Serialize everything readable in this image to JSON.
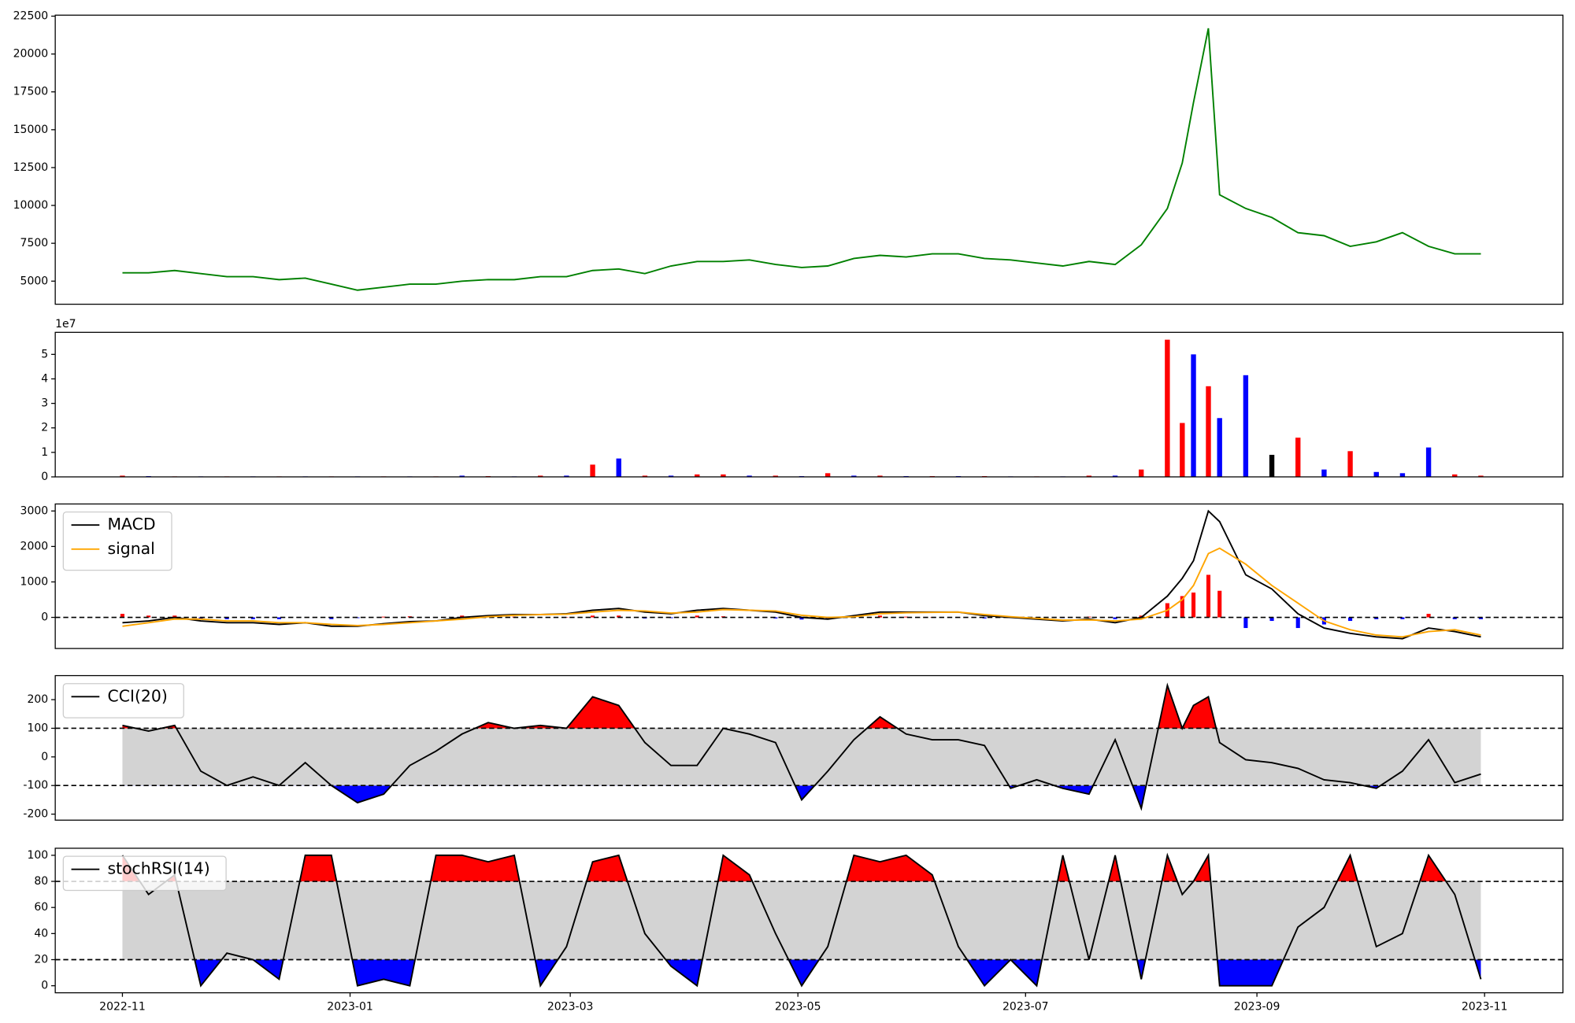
{
  "chart_data": [
    {
      "type": "line",
      "x": [
        0,
        7,
        14,
        21,
        28,
        35,
        42,
        49,
        56,
        63,
        70,
        77,
        84,
        91,
        98,
        105,
        112,
        119,
        126,
        133,
        140,
        147,
        154,
        161,
        168,
        175,
        182,
        189,
        196,
        203,
        210,
        217,
        224,
        231,
        238,
        245,
        252,
        259,
        266,
        273,
        280,
        284,
        287,
        291,
        294,
        301,
        308,
        315,
        322,
        329,
        336,
        343,
        350,
        357,
        364
      ],
      "xlim": [
        -18,
        386
      ],
      "ylim": [
        3475,
        22566
      ],
      "yticks": [
        5000,
        7500,
        10000,
        12500,
        15000,
        17500,
        20000,
        22500
      ],
      "series": [
        {
          "color": "green",
          "values": [
            5550,
            5550,
            5700,
            5500,
            5300,
            5300,
            5100,
            5200,
            4800,
            4400,
            4600,
            4800,
            4800,
            5000,
            5100,
            5100,
            5300,
            5300,
            5700,
            5800,
            5500,
            6000,
            6300,
            6300,
            6400,
            6100,
            5900,
            6000,
            6500,
            6700,
            6600,
            6800,
            6800,
            6500,
            6400,
            6200,
            6000,
            6300,
            6100,
            7400,
            9800,
            12800,
            16800,
            21700,
            10700,
            9800,
            9200,
            8200,
            8000,
            7300,
            7600,
            8200,
            7300,
            6800,
            6800
          ]
        }
      ]
    },
    {
      "type": "bar",
      "x": [
        0,
        7,
        14,
        21,
        28,
        35,
        42,
        49,
        56,
        63,
        70,
        77,
        84,
        91,
        98,
        105,
        112,
        119,
        126,
        133,
        140,
        147,
        154,
        161,
        168,
        175,
        182,
        189,
        196,
        203,
        210,
        217,
        224,
        231,
        238,
        245,
        252,
        259,
        266,
        273,
        280,
        284,
        287,
        291,
        294,
        301,
        308,
        315,
        322,
        329,
        336,
        343,
        350,
        357,
        364
      ],
      "xlim": [
        -18,
        386
      ],
      "ylim": [
        0,
        5.9
      ],
      "yticks": [
        0,
        1,
        2,
        3,
        4,
        5
      ],
      "y_offset_label": "1e7",
      "values": [
        0.05,
        0.03,
        0.02,
        0.02,
        0.02,
        0.02,
        0.02,
        0.02,
        0.02,
        0.02,
        0.02,
        0.02,
        0.02,
        0.05,
        0.03,
        0.02,
        0.05,
        0.05,
        0.5,
        0.75,
        0.05,
        0.05,
        0.1,
        0.1,
        0.05,
        0.05,
        0.03,
        0.15,
        0.05,
        0.05,
        0.03,
        0.03,
        0.03,
        0.03,
        0.02,
        0.02,
        0.02,
        0.05,
        0.05,
        0.3,
        5.6,
        2.2,
        5.0,
        3.7,
        2.4,
        4.15,
        0.9,
        1.6,
        0.3,
        1.05,
        0.2,
        0.15,
        1.2,
        0.1,
        0.05
      ],
      "colors": [
        "red",
        "blue",
        "red",
        "blue",
        "red",
        "blue",
        "red",
        "blue",
        "red",
        "blue",
        "red",
        "blue",
        "red",
        "blue",
        "red",
        "blue",
        "red",
        "blue",
        "red",
        "blue",
        "red",
        "blue",
        "red",
        "red",
        "blue",
        "red",
        "blue",
        "red",
        "blue",
        "red",
        "blue",
        "red",
        "blue",
        "red",
        "blue",
        "red",
        "blue",
        "red",
        "blue",
        "red",
        "red",
        "red",
        "blue",
        "red",
        "blue",
        "blue",
        "black",
        "red",
        "blue",
        "red",
        "blue",
        "blue",
        "blue",
        "red",
        "red"
      ]
    },
    {
      "type": "line",
      "x": [
        0,
        7,
        14,
        21,
        28,
        35,
        42,
        49,
        56,
        63,
        70,
        77,
        84,
        91,
        98,
        105,
        112,
        119,
        126,
        133,
        140,
        147,
        154,
        161,
        168,
        175,
        182,
        189,
        196,
        203,
        210,
        217,
        224,
        231,
        238,
        245,
        252,
        259,
        266,
        273,
        280,
        284,
        287,
        291,
        294,
        301,
        308,
        315,
        322,
        329,
        336,
        343,
        350,
        357,
        364
      ],
      "xlim": [
        -18,
        386
      ],
      "ylim": [
        -878,
        3198
      ],
      "yticks": [
        0,
        1000,
        2000,
        3000
      ],
      "hlines": [
        0
      ],
      "legend": "upper left",
      "series": [
        {
          "name": "MACD",
          "color": "black",
          "values": [
            -150,
            -100,
            0,
            -100,
            -150,
            -150,
            -200,
            -150,
            -250,
            -250,
            -180,
            -120,
            -100,
            0,
            50,
            80,
            80,
            100,
            200,
            250,
            150,
            100,
            200,
            250,
            200,
            150,
            0,
            -50,
            50,
            150,
            150,
            150,
            150,
            50,
            0,
            -50,
            -100,
            -50,
            -150,
            0,
            600,
            1100,
            1600,
            3000,
            2700,
            1200,
            800,
            100,
            -300,
            -450,
            -550,
            -600,
            -300,
            -400,
            -550
          ]
        },
        {
          "name": "signal",
          "color": "orange",
          "values": [
            -250,
            -150,
            -50,
            -50,
            -100,
            -100,
            -150,
            -150,
            -200,
            -230,
            -200,
            -150,
            -100,
            -50,
            20,
            60,
            80,
            90,
            150,
            200,
            180,
            120,
            150,
            220,
            200,
            180,
            60,
            0,
            20,
            100,
            130,
            140,
            150,
            80,
            20,
            -30,
            -80,
            -70,
            -100,
            -50,
            200,
            500,
            900,
            1800,
            1950,
            1500,
            900,
            400,
            -100,
            -350,
            -500,
            -550,
            -400,
            -350,
            -500
          ]
        }
      ],
      "histogram": [
        100,
        50,
        50,
        -50,
        -50,
        -50,
        -50,
        0,
        -50,
        -20,
        20,
        30,
        0,
        50,
        30,
        20,
        0,
        10,
        50,
        50,
        -30,
        -20,
        50,
        30,
        0,
        -30,
        -60,
        -50,
        30,
        50,
        20,
        10,
        0,
        -30,
        -20,
        -20,
        -20,
        20,
        -50,
        50,
        400,
        600,
        700,
        1200,
        750,
        -300,
        -100,
        -300,
        -200,
        -100,
        -50,
        -50,
        100,
        -50,
        -50
      ],
      "histogram_colors": {
        "positive": "red",
        "negative": "blue"
      }
    },
    {
      "type": "oscillator",
      "x": [
        0,
        7,
        14,
        21,
        28,
        35,
        42,
        49,
        56,
        63,
        70,
        77,
        84,
        91,
        98,
        105,
        112,
        119,
        126,
        133,
        140,
        147,
        154,
        161,
        168,
        175,
        182,
        189,
        196,
        203,
        210,
        217,
        224,
        231,
        238,
        245,
        252,
        259,
        266,
        273,
        280,
        284,
        287,
        291,
        294,
        301,
        308,
        315,
        322,
        329,
        336,
        343,
        350,
        357,
        364
      ],
      "xlim": [
        -18,
        386
      ],
      "ylim": [
        -221,
        284
      ],
      "yticks": [
        -200,
        -100,
        0,
        100,
        200
      ],
      "legend": "upper left",
      "band": [
        -100,
        100
      ],
      "band_color": "#d3d3d3",
      "fill_colors": {
        "above": "red",
        "below": "blue"
      },
      "series": [
        {
          "name": "CCI(20)",
          "color": "black",
          "values": [
            110,
            90,
            110,
            -50,
            -100,
            -70,
            -100,
            -20,
            -100,
            -160,
            -130,
            -30,
            20,
            80,
            120,
            100,
            110,
            100,
            210,
            180,
            50,
            -30,
            -30,
            100,
            80,
            50,
            -150,
            -50,
            60,
            140,
            80,
            60,
            60,
            40,
            -110,
            -80,
            -110,
            -130,
            60,
            -180,
            250,
            100,
            180,
            210,
            50,
            -10,
            -20,
            -40,
            -80,
            -90,
            -110,
            -50,
            60,
            -90,
            -60
          ]
        }
      ]
    },
    {
      "type": "oscillator",
      "x": [
        0,
        7,
        14,
        21,
        28,
        35,
        42,
        49,
        56,
        63,
        70,
        77,
        84,
        91,
        98,
        105,
        112,
        119,
        126,
        133,
        140,
        147,
        154,
        161,
        168,
        175,
        182,
        189,
        196,
        203,
        210,
        217,
        224,
        231,
        238,
        245,
        252,
        259,
        266,
        273,
        280,
        284,
        287,
        291,
        294,
        301,
        308,
        315,
        322,
        329,
        336,
        343,
        350,
        357,
        364
      ],
      "xlim": [
        -18,
        386
      ],
      "xticks": [
        {
          "value": 0,
          "label": "2022-11"
        },
        {
          "value": 61,
          "label": "2023-01"
        },
        {
          "value": 120,
          "label": "2023-03"
        },
        {
          "value": 181,
          "label": "2023-05"
        },
        {
          "value": 242,
          "label": "2023-07"
        },
        {
          "value": 304,
          "label": "2023-09"
        },
        {
          "value": 365,
          "label": "2023-11"
        }
      ],
      "ylim": [
        -5.4,
        105.4
      ],
      "yticks": [
        0,
        20,
        40,
        60,
        80,
        100
      ],
      "legend": "upper left",
      "band": [
        20,
        80
      ],
      "band_color": "#d3d3d3",
      "fill_colors": {
        "above": "red",
        "below": "blue"
      },
      "series": [
        {
          "name": "stochRSI(14)",
          "color": "black",
          "values": [
            100,
            70,
            85,
            0,
            25,
            20,
            5,
            100,
            100,
            0,
            5,
            0,
            100,
            100,
            95,
            100,
            0,
            30,
            95,
            100,
            40,
            15,
            0,
            100,
            85,
            40,
            0,
            30,
            100,
            95,
            100,
            85,
            30,
            0,
            20,
            0,
            100,
            20,
            100,
            5,
            100,
            70,
            80,
            100,
            0,
            0,
            0,
            45,
            60,
            100,
            30,
            40,
            100,
            70,
            5
          ]
        }
      ]
    }
  ]
}
